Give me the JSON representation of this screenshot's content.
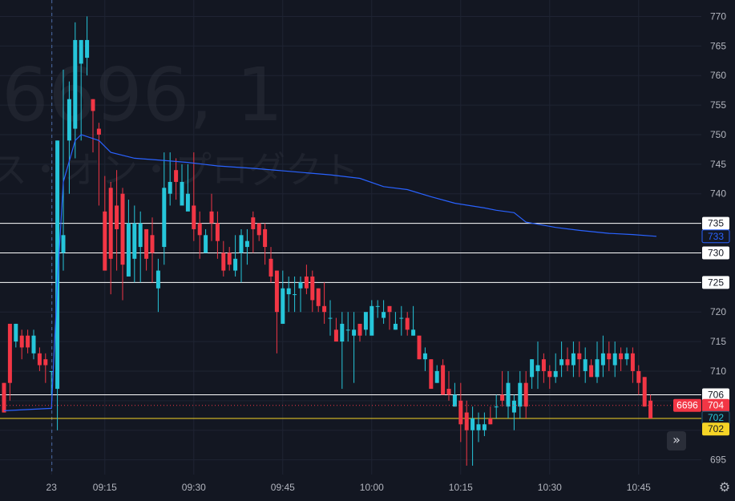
{
  "watermark": {
    "symbol_line": "6696, 1",
    "name_line": "ス・オン・プロダクト"
  },
  "colors": {
    "background": "#131722",
    "up": "#26c6da",
    "down": "#f23645",
    "ma": "#2962ff",
    "grid": "#1f2433",
    "hline": "#ffffff",
    "yellow": "#f5d426",
    "text": "#b2b5be"
  },
  "chart_data": {
    "type": "candlestick",
    "symbol": "6696",
    "y_ticks": [
      "695",
      "700",
      "705",
      "710",
      "715",
      "720",
      "725",
      "730",
      "735",
      "740",
      "745",
      "750",
      "755",
      "760",
      "765",
      "770"
    ],
    "ylim": [
      692.5,
      772.5
    ],
    "x_ticks": [
      {
        "label": "23",
        "bar": 8
      },
      {
        "label": "09:15",
        "bar": 17
      },
      {
        "label": "09:30",
        "bar": 32
      },
      {
        "label": "09:45",
        "bar": 47
      },
      {
        "label": "10:00",
        "bar": 62
      },
      {
        "label": "10:15",
        "bar": 77
      },
      {
        "label": "10:30",
        "bar": 92
      },
      {
        "label": "10:45",
        "bar": 107
      }
    ],
    "session_divider_bar": 8,
    "candles": [
      [
        708,
        703,
        708,
        703
      ],
      [
        718,
        708,
        718,
        705
      ],
      [
        715,
        718,
        718,
        714
      ],
      [
        716,
        714,
        717,
        712
      ],
      [
        716,
        714,
        717,
        713
      ],
      [
        713,
        716,
        717,
        712
      ],
      [
        713,
        711,
        714,
        710
      ],
      [
        712,
        711,
        713,
        708
      ],
      [
        710,
        710,
        710,
        706
      ],
      [
        707,
        749,
        749,
        700
      ],
      [
        730,
        733,
        761,
        727
      ],
      [
        749,
        756,
        759,
        740
      ],
      [
        751,
        766,
        769,
        746
      ],
      [
        762,
        766,
        766,
        749
      ],
      [
        763,
        766,
        770,
        760
      ],
      [
        756,
        754,
        756,
        747
      ],
      [
        751,
        750,
        752,
        738
      ],
      [
        737,
        727,
        743,
        731
      ],
      [
        741,
        729,
        742,
        723
      ],
      [
        738,
        734,
        744,
        727
      ],
      [
        740,
        728,
        741,
        722
      ],
      [
        726,
        735,
        739,
        729
      ],
      [
        729,
        735,
        738,
        725
      ],
      [
        731,
        735,
        737,
        725
      ],
      [
        734,
        729,
        734,
        727
      ],
      [
        733,
        730,
        736,
        725
      ],
      [
        724,
        727,
        729,
        720
      ],
      [
        731,
        741,
        747,
        728
      ],
      [
        740,
        742,
        747,
        738
      ],
      [
        744,
        742,
        746,
        739
      ],
      [
        738,
        742,
        745,
        740
      ],
      [
        737,
        740,
        745,
        738
      ],
      [
        738,
        734,
        747,
        732
      ],
      [
        735,
        733,
        737,
        729
      ],
      [
        730,
        733,
        734,
        730
      ],
      [
        737,
        735,
        740,
        732
      ],
      [
        735,
        732,
        737,
        729
      ],
      [
        730,
        727,
        732,
        726
      ],
      [
        730,
        728,
        731,
        727
      ],
      [
        727,
        729,
        733,
        726
      ],
      [
        730,
        733,
        734,
        725
      ],
      [
        731,
        732,
        734,
        728
      ],
      [
        736,
        734,
        737,
        730
      ],
      [
        735,
        733,
        735,
        732
      ],
      [
        734,
        731,
        735,
        728
      ],
      [
        729,
        726,
        731,
        725
      ],
      [
        727,
        720,
        727,
        713
      ],
      [
        718,
        724,
        727,
        719
      ],
      [
        723,
        724,
        726,
        720
      ],
      [
        723,
        723,
        726,
        720
      ],
      [
        724,
        725,
        726,
        720
      ],
      [
        726,
        724,
        728,
        723
      ],
      [
        726,
        722,
        727,
        720
      ],
      [
        724,
        721,
        724,
        720
      ],
      [
        721,
        720,
        725,
        718
      ],
      [
        719,
        719,
        722,
        716
      ],
      [
        717,
        715,
        719,
        715
      ],
      [
        715,
        718,
        720,
        707
      ],
      [
        717,
        717,
        720,
        715
      ],
      [
        716,
        717,
        720,
        708
      ],
      [
        718,
        716,
        718,
        715
      ],
      [
        717,
        720,
        719,
        716
      ],
      [
        716,
        721,
        722,
        717
      ],
      [
        721,
        721,
        722,
        719
      ],
      [
        719,
        720,
        722,
        718
      ],
      [
        721,
        720,
        721,
        717
      ],
      [
        717,
        718,
        720,
        717
      ],
      [
        719,
        719,
        721,
        716
      ],
      [
        719,
        717,
        720,
        716
      ],
      [
        716,
        717,
        721,
        716
      ],
      [
        716,
        712,
        716,
        712
      ],
      [
        712,
        713,
        714,
        710
      ],
      [
        712,
        707,
        712,
        707
      ],
      [
        708,
        710,
        711,
        708
      ],
      [
        711,
        706,
        712,
        706
      ],
      [
        707,
        706,
        710,
        705
      ],
      [
        704,
        706,
        708,
        704
      ],
      [
        705,
        701,
        708,
        698
      ],
      [
        703,
        700,
        705,
        694
      ],
      [
        700,
        702,
        704,
        694
      ],
      [
        700,
        701,
        703,
        698
      ],
      [
        700,
        701,
        703,
        699
      ],
      [
        702,
        701,
        704,
        701
      ],
      [
        704,
        704,
        706,
        702
      ],
      [
        706,
        705,
        710,
        704
      ],
      [
        704,
        708,
        710,
        702
      ],
      [
        703,
        705,
        706,
        700
      ],
      [
        704,
        708,
        710,
        702
      ],
      [
        708,
        704,
        710,
        702
      ],
      [
        709,
        712,
        712,
        707
      ],
      [
        710,
        711,
        715,
        707
      ],
      [
        712,
        710,
        713,
        708
      ],
      [
        710,
        709,
        711,
        707
      ],
      [
        709,
        710,
        713,
        708
      ],
      [
        711,
        712,
        715,
        709
      ],
      [
        712,
        711,
        714,
        710
      ],
      [
        711,
        713,
        715,
        709
      ],
      [
        713,
        712,
        715,
        709
      ],
      [
        710,
        712,
        714,
        708
      ],
      [
        711,
        709,
        712,
        709
      ],
      [
        709,
        712,
        715,
        708
      ],
      [
        711,
        713,
        716,
        709
      ],
      [
        713,
        712,
        715,
        710
      ],
      [
        711,
        713,
        715,
        709
      ],
      [
        713,
        712,
        714,
        710
      ],
      [
        712,
        713,
        714,
        711
      ],
      [
        713,
        710,
        714,
        708
      ],
      [
        710,
        708,
        711,
        706
      ],
      [
        709,
        704,
        709,
        704
      ],
      [
        705,
        702,
        706,
        702
      ]
    ],
    "ma_line": [
      [
        0,
        703.3
      ],
      [
        8,
        703.7
      ],
      [
        9,
        725
      ],
      [
        10,
        742
      ],
      [
        12,
        749
      ],
      [
        13,
        750
      ],
      [
        16,
        749
      ],
      [
        18,
        747
      ],
      [
        22,
        746
      ],
      [
        26,
        745.7
      ],
      [
        31,
        745.3
      ],
      [
        36,
        744.7
      ],
      [
        42,
        744.3
      ],
      [
        48,
        743.8
      ],
      [
        55,
        743.2
      ],
      [
        60,
        742.6
      ],
      [
        64,
        741.2
      ],
      [
        68,
        740.7
      ],
      [
        72,
        739.5
      ],
      [
        76,
        738.4
      ],
      [
        81,
        737.6
      ],
      [
        83,
        737.2
      ],
      [
        86,
        736.8
      ],
      [
        87,
        736
      ],
      [
        88,
        735.2
      ],
      [
        93,
        734.3
      ],
      [
        97,
        733.8
      ],
      [
        102,
        733.3
      ],
      [
        106,
        733.1
      ],
      [
        110,
        732.8
      ]
    ],
    "price_lines": [
      {
        "value": 735,
        "label": "735",
        "color": "#ffffff"
      },
      {
        "value": 730,
        "label": "730",
        "color": "#ffffff"
      },
      {
        "value": 725,
        "label": "725",
        "color": "#ffffff"
      },
      {
        "value": 706,
        "label": "706",
        "color": "#ffffff"
      },
      {
        "value": 702,
        "label": "702",
        "color": "#f5d426"
      }
    ],
    "labels": {
      "ma_value": "733",
      "symbol_tag": "6696",
      "last_price": "704",
      "last_close": "702",
      "yellow_price": "702"
    },
    "last_price_value": 704.2,
    "last_close_value": 702.1,
    "ma_value_num": 732.8
  },
  "ui": {
    "scroll_button_icon": "»",
    "settings_icon": "⚙"
  }
}
